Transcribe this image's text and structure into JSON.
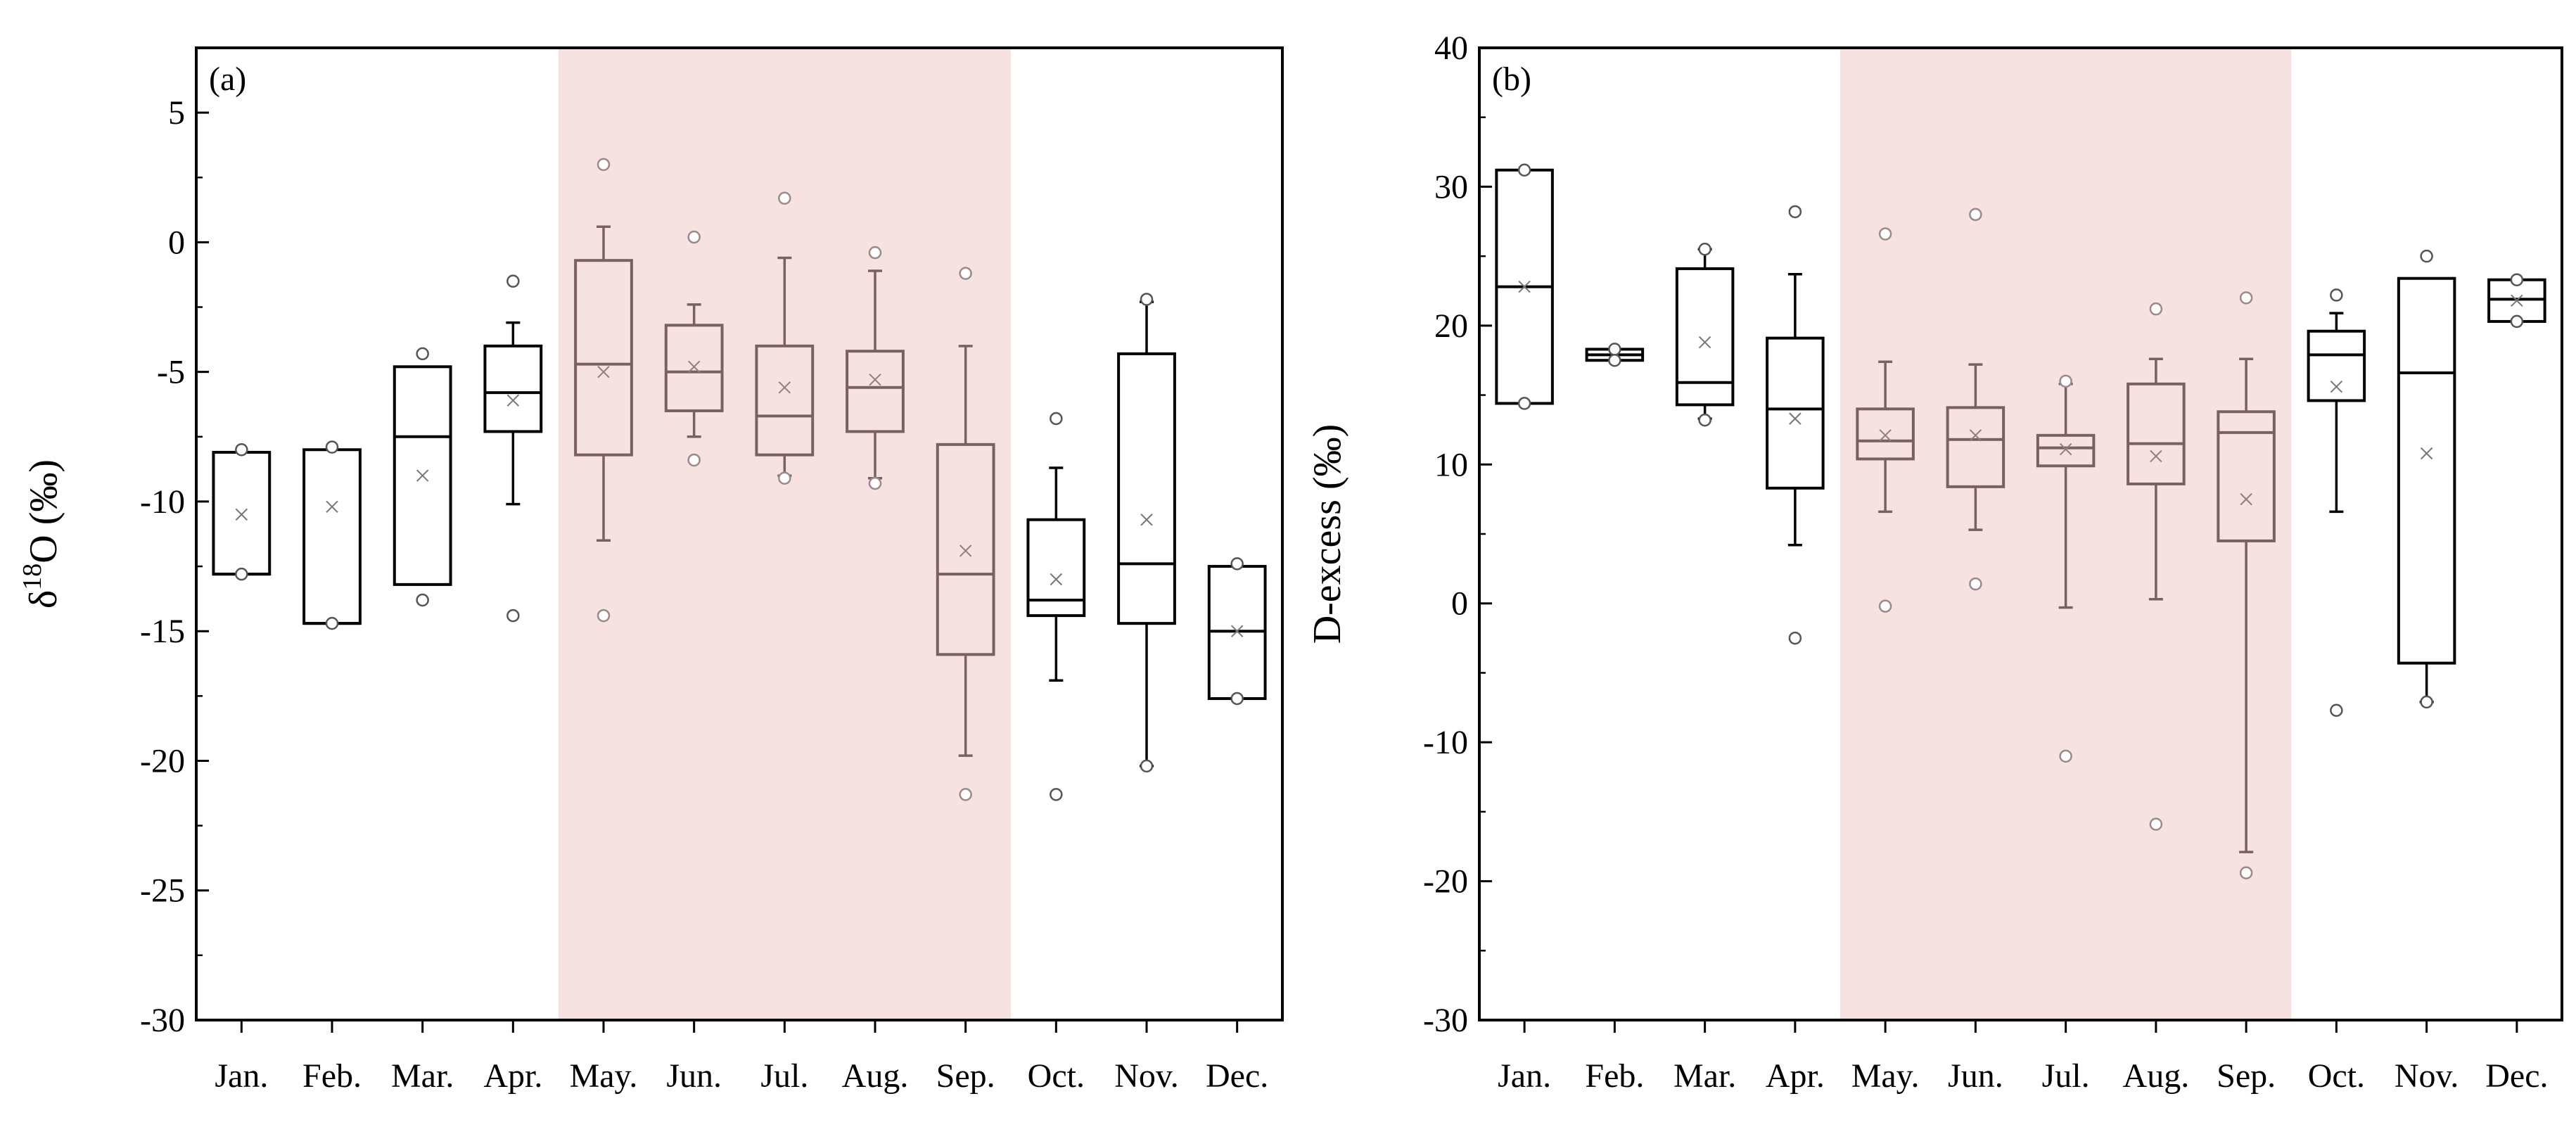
{
  "colors": {
    "season_shade": "#f7e2e2",
    "box_default": "#000000",
    "box_season": "#7a6060",
    "outlier_default": "#555555",
    "outlier_season": "#9a8a8a",
    "mean_default": "#777777",
    "mean_season": "#8f7f7f",
    "axis": "#000000"
  },
  "chart_data": [
    {
      "type": "box",
      "panel_label": "(a)",
      "ylabel_main": "δ",
      "ylabel_sup": "18",
      "ylabel_tail": "O (‰)",
      "xlabel": "",
      "ylim": [
        -30,
        7.5
      ],
      "yticks": [
        -30,
        -25,
        -20,
        -15,
        -10,
        -5,
        0,
        5
      ],
      "shaded_range": [
        "May.",
        "Sep."
      ],
      "categories": [
        "Jan.",
        "Feb.",
        "Mar.",
        "Apr.",
        "May.",
        "Jun.",
        "Jul.",
        "Aug.",
        "Sep.",
        "Oct.",
        "Nov.",
        "Dec."
      ],
      "boxes": [
        {
          "q1": -12.8,
          "median": -12.8,
          "q3": -8.1,
          "whisker_low": -12.8,
          "whisker_high": -8.1,
          "mean": -10.5,
          "outliers": [
            -8.0,
            -12.8
          ],
          "season": false
        },
        {
          "q1": -14.7,
          "median": -14.7,
          "q3": -8.0,
          "whisker_low": -14.7,
          "whisker_high": -8.0,
          "mean": -10.2,
          "outliers": [
            -7.9,
            -14.7
          ],
          "season": false
        },
        {
          "q1": -13.2,
          "median": -7.5,
          "q3": -4.8,
          "whisker_low": -13.2,
          "whisker_high": -4.8,
          "mean": -9.0,
          "outliers": [
            -4.3,
            -13.8
          ],
          "season": false
        },
        {
          "q1": -7.3,
          "median": -5.8,
          "q3": -4.0,
          "whisker_low": -10.1,
          "whisker_high": -3.1,
          "mean": -6.1,
          "outliers": [
            -1.5,
            -14.4
          ],
          "season": false
        },
        {
          "q1": -8.2,
          "median": -4.7,
          "q3": -0.7,
          "whisker_low": -11.5,
          "whisker_high": 0.6,
          "mean": -5.0,
          "outliers": [
            3.0,
            -14.4
          ],
          "season": true
        },
        {
          "q1": -6.5,
          "median": -5.0,
          "q3": -3.2,
          "whisker_low": -7.5,
          "whisker_high": -2.4,
          "mean": -4.8,
          "outliers": [
            0.2,
            -8.4
          ],
          "season": true
        },
        {
          "q1": -8.2,
          "median": -6.7,
          "q3": -4.0,
          "whisker_low": -9.0,
          "whisker_high": -0.6,
          "mean": -5.6,
          "outliers": [
            1.7,
            -9.1
          ],
          "season": true
        },
        {
          "q1": -7.3,
          "median": -5.6,
          "q3": -4.2,
          "whisker_low": -9.1,
          "whisker_high": -1.1,
          "mean": -5.3,
          "outliers": [
            -0.4,
            -9.3
          ],
          "season": true
        },
        {
          "q1": -15.9,
          "median": -12.8,
          "q3": -7.8,
          "whisker_low": -19.8,
          "whisker_high": -4.0,
          "mean": -11.9,
          "outliers": [
            -1.2,
            -21.3
          ],
          "season": true
        },
        {
          "q1": -14.4,
          "median": -13.8,
          "q3": -10.7,
          "whisker_low": -16.9,
          "whisker_high": -8.7,
          "mean": -13.0,
          "outliers": [
            -6.8,
            -21.3
          ],
          "season": false
        },
        {
          "q1": -14.7,
          "median": -12.4,
          "q3": -4.3,
          "whisker_low": -20.2,
          "whisker_high": -2.3,
          "mean": -10.7,
          "outliers": [
            -2.2,
            -20.2
          ],
          "season": false
        },
        {
          "q1": -17.6,
          "median": -15.0,
          "q3": -12.5,
          "whisker_low": -17.6,
          "whisker_high": -12.5,
          "mean": -15.0,
          "outliers": [
            -12.4,
            -17.6
          ],
          "season": false
        }
      ]
    },
    {
      "type": "box",
      "panel_label": "(b)",
      "ylabel_main": "D-excess (‰)",
      "ylabel_sup": "",
      "ylabel_tail": "",
      "xlabel": "",
      "ylim": [
        -30,
        40
      ],
      "yticks": [
        -30,
        -20,
        -10,
        0,
        10,
        20,
        30,
        40
      ],
      "shaded_range": [
        "May.",
        "Sep."
      ],
      "categories": [
        "Jan.",
        "Feb.",
        "Mar.",
        "Apr.",
        "May.",
        "Jun.",
        "Jul.",
        "Aug.",
        "Sep.",
        "Oct.",
        "Nov.",
        "Dec."
      ],
      "boxes": [
        {
          "q1": 14.4,
          "median": 22.8,
          "q3": 31.2,
          "whisker_low": 14.4,
          "whisker_high": 31.2,
          "mean": 22.8,
          "outliers": [
            31.2,
            14.4
          ],
          "season": false
        },
        {
          "q1": 17.5,
          "median": 17.9,
          "q3": 18.3,
          "whisker_low": 17.5,
          "whisker_high": 18.3,
          "mean": 17.9,
          "outliers": [
            18.3,
            17.5
          ],
          "season": false
        },
        {
          "q1": 14.3,
          "median": 15.9,
          "q3": 24.1,
          "whisker_low": 13.3,
          "whisker_high": 25.5,
          "mean": 18.8,
          "outliers": [
            25.5,
            13.2
          ],
          "season": false
        },
        {
          "q1": 8.3,
          "median": 14.0,
          "q3": 19.1,
          "whisker_low": 4.2,
          "whisker_high": 23.7,
          "mean": 13.3,
          "outliers": [
            28.2,
            -2.5
          ],
          "season": false
        },
        {
          "q1": 10.4,
          "median": 11.7,
          "q3": 14.0,
          "whisker_low": 6.6,
          "whisker_high": 17.4,
          "mean": 12.1,
          "outliers": [
            26.6,
            -0.2
          ],
          "season": true
        },
        {
          "q1": 8.4,
          "median": 11.8,
          "q3": 14.1,
          "whisker_low": 5.3,
          "whisker_high": 17.2,
          "mean": 12.1,
          "outliers": [
            28.0,
            1.4
          ],
          "season": true
        },
        {
          "q1": 9.9,
          "median": 11.2,
          "q3": 12.1,
          "whisker_low": -0.3,
          "whisker_high": 15.8,
          "mean": 11.1,
          "outliers": [
            16.0,
            -11.0
          ],
          "season": true
        },
        {
          "q1": 8.6,
          "median": 11.5,
          "q3": 15.8,
          "whisker_low": 0.3,
          "whisker_high": 17.6,
          "mean": 10.6,
          "outliers": [
            21.2,
            -15.9
          ],
          "season": true
        },
        {
          "q1": 4.5,
          "median": 12.3,
          "q3": 13.8,
          "whisker_low": -17.9,
          "whisker_high": 17.6,
          "mean": 7.5,
          "outliers": [
            22.0,
            -19.4
          ],
          "season": true
        },
        {
          "q1": 14.6,
          "median": 17.9,
          "q3": 19.6,
          "whisker_low": 6.6,
          "whisker_high": 20.9,
          "mean": 15.6,
          "outliers": [
            22.2,
            -7.7
          ],
          "season": false
        },
        {
          "q1": -4.3,
          "median": 16.6,
          "q3": 23.4,
          "whisker_low": -7.1,
          "whisker_high": 23.4,
          "mean": 10.8,
          "outliers": [
            25.0,
            -7.1
          ],
          "season": false
        },
        {
          "q1": 20.3,
          "median": 21.9,
          "q3": 23.3,
          "whisker_low": 20.3,
          "whisker_high": 23.3,
          "mean": 21.8,
          "outliers": [
            23.3,
            20.3
          ],
          "season": false
        }
      ]
    }
  ]
}
